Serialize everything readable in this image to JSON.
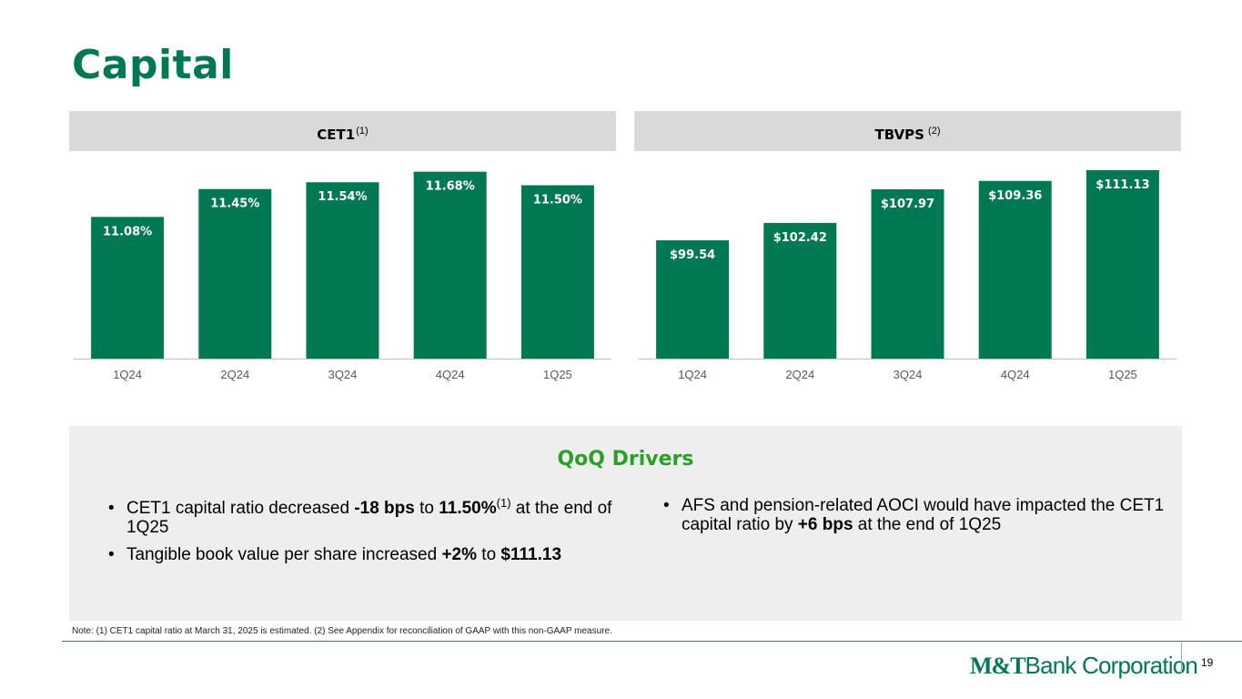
{
  "page": {
    "title": "Capital",
    "note": "Note: (1) CET1 capital ratio at March 31, 2025 is estimated. (2) See Appendix for reconciliation of GAAP with this non-GAAP measure.",
    "page_number": "19",
    "logo": {
      "mark": "M&T",
      "text": "Bank Corporation"
    }
  },
  "panels": {
    "cet1": {
      "title": "CET1",
      "footnote": "(1)"
    },
    "tbvps": {
      "title": "TBVPS",
      "footnote": " (2)"
    }
  },
  "chart_data": [
    {
      "type": "bar",
      "title": "CET1",
      "categories": [
        "1Q24",
        "2Q24",
        "3Q24",
        "4Q24",
        "1Q25"
      ],
      "values": [
        11.08,
        11.45,
        11.54,
        11.68,
        11.5
      ],
      "value_labels": [
        "11.08%",
        "11.45%",
        "11.54%",
        "11.68%",
        "11.50%"
      ],
      "ylim": [
        9.2,
        11.7
      ],
      "color": "#007852",
      "grid": false,
      "legend": "none"
    },
    {
      "type": "bar",
      "title": "TBVPS",
      "categories": [
        "1Q24",
        "2Q24",
        "3Q24",
        "4Q24",
        "1Q25"
      ],
      "values": [
        99.54,
        102.42,
        107.97,
        109.36,
        111.13
      ],
      "value_labels": [
        "$99.54",
        "$102.42",
        "$107.97",
        "$109.36",
        "$111.13"
      ],
      "ylim": [
        80,
        111.13
      ],
      "color": "#007852",
      "grid": false,
      "legend": "none"
    }
  ],
  "drivers": {
    "title": "QoQ Drivers",
    "left": [
      {
        "parts": [
          "CET1 capital ratio decreased ",
          "-18 bps",
          " to ",
          "11.50%",
          "(1)",
          " at the end of 1Q25"
        ]
      },
      {
        "parts": [
          "Tangible book value per share increased ",
          "+2%",
          " to ",
          "$111.13"
        ]
      }
    ],
    "right": [
      {
        "parts": [
          "AFS and pension-related AOCI would have impacted the CET1 capital ratio by ",
          "+6 bps",
          " at the end of 1Q25"
        ]
      }
    ]
  }
}
